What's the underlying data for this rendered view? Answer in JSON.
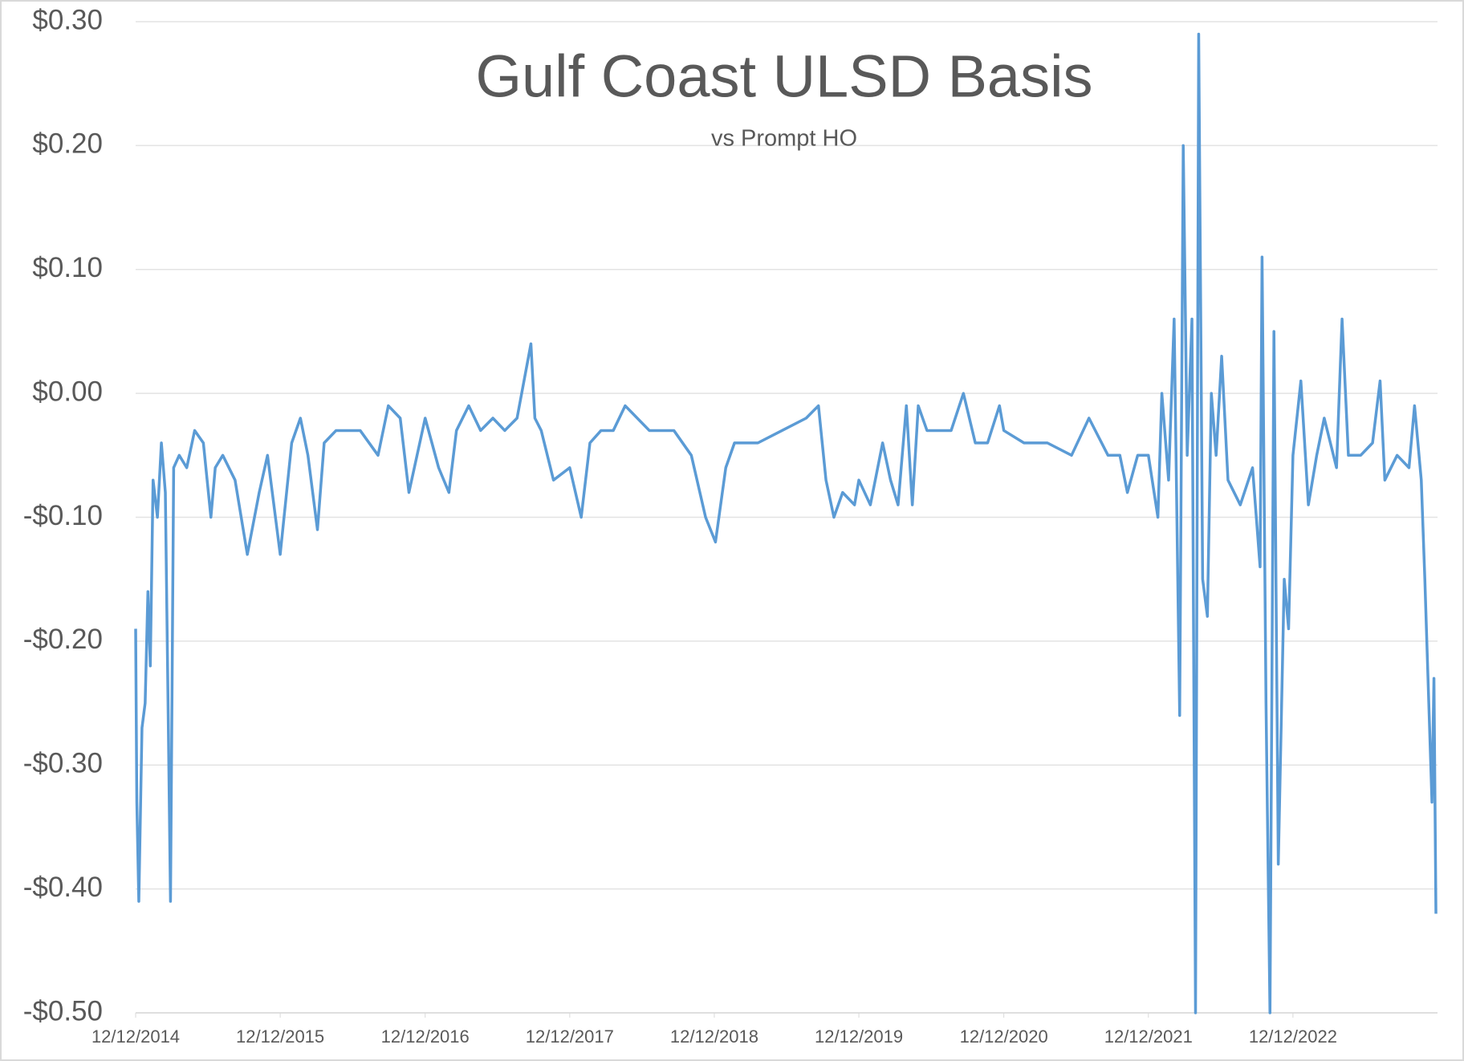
{
  "chart_data": {
    "type": "line",
    "title": "Gulf Coast ULSD Basis",
    "subtitle": "vs Prompt HO",
    "x": [
      "12/12/2014",
      "12/15/2014",
      "12/20/2014",
      "12/28/2014",
      "1/5/2015",
      "1/12/2015",
      "1/18/2015",
      "1/25/2015",
      "2/5/2015",
      "2/15/2015",
      "2/25/2015",
      "3/5/2015",
      "3/10/2015",
      "3/18/2015",
      "4/1/2015",
      "4/20/2015",
      "5/10/2015",
      "6/1/2015",
      "6/20/2015",
      "7/1/2015",
      "7/20/2015",
      "8/20/2015",
      "9/20/2015",
      "10/20/2015",
      "11/10/2015",
      "12/12/2015",
      "1/10/2016",
      "2/1/2016",
      "2/20/2016",
      "3/15/2016",
      "4/1/2016",
      "5/1/2016",
      "7/1/2016",
      "8/15/2016",
      "9/10/2016",
      "10/10/2016",
      "11/1/2016",
      "12/12/2016",
      "1/15/2017",
      "2/10/2017",
      "3/1/2017",
      "4/1/2017",
      "5/1/2017",
      "6/1/2017",
      "7/1/2017",
      "8/1/2017",
      "9/5/2017",
      "9/15/2017",
      "10/1/2017",
      "11/1/2017",
      "12/12/2017",
      "1/10/2018",
      "2/1/2018",
      "3/1/2018",
      "4/1/2018",
      "5/1/2018",
      "7/1/2018",
      "9/1/2018",
      "10/15/2018",
      "11/20/2018",
      "12/15/2018",
      "1/10/2019",
      "2/1/2019",
      "4/1/2019",
      "6/1/2019",
      "8/1/2019",
      "9/1/2019",
      "9/20/2019",
      "10/10/2019",
      "11/1/2019",
      "12/1/2019",
      "12/12/2019",
      "1/10/2020",
      "2/10/2020",
      "3/1/2020",
      "3/20/2020",
      "4/10/2020",
      "4/25/2020",
      "5/10/2020",
      "6/1/2020",
      "7/1/2020",
      "8/1/2020",
      "9/1/2020",
      "10/1/2020",
      "11/1/2020",
      "12/1/2020",
      "12/12/2020",
      "2/1/2021",
      "4/1/2021",
      "6/1/2021",
      "7/15/2021",
      "9/1/2021",
      "10/1/2021",
      "10/20/2021",
      "11/15/2021",
      "12/12/2021",
      "1/5/2022",
      "1/15/2022",
      "2/1/2022",
      "2/15/2022",
      "3/1/2022",
      "3/10/2022",
      "3/20/2022",
      "4/1/2022",
      "4/10/2022",
      "4/18/2022",
      "4/28/2022",
      "5/10/2022",
      "5/20/2022",
      "6/1/2022",
      "6/15/2022",
      "7/1/2022",
      "8/1/2022",
      "9/1/2022",
      "9/20/2022",
      "9/25/2022",
      "10/5/2022",
      "10/15/2022",
      "10/25/2022",
      "11/5/2022",
      "11/20/2022",
      "12/1/2022",
      "12/12/2022",
      "1/1/2023",
      "1/20/2023",
      "2/10/2023",
      "3/1/2023",
      "4/1/2023",
      "4/15/2023",
      "5/1/2023",
      "6/1/2023",
      "7/1/2023",
      "7/20/2023",
      "8/1/2023",
      "9/1/2023",
      "10/1/2023",
      "10/15/2023",
      "11/1/2023",
      "11/10/2023",
      "11/20/2023",
      "11/28/2023",
      "12/3/2023",
      "12/8/2023"
    ],
    "series": [
      {
        "color": "#5b9bd5",
        "values": [
          -0.19,
          -0.33,
          -0.41,
          -0.27,
          -0.25,
          -0.16,
          -0.22,
          -0.07,
          -0.1,
          -0.04,
          -0.08,
          -0.28,
          -0.41,
          -0.06,
          -0.05,
          -0.06,
          -0.03,
          -0.04,
          -0.1,
          -0.06,
          -0.05,
          -0.07,
          -0.13,
          -0.08,
          -0.05,
          -0.13,
          -0.04,
          -0.02,
          -0.05,
          -0.11,
          -0.04,
          -0.03,
          -0.03,
          -0.05,
          -0.01,
          -0.02,
          -0.08,
          -0.02,
          -0.06,
          -0.08,
          -0.03,
          -0.01,
          -0.03,
          -0.02,
          -0.03,
          -0.02,
          0.04,
          -0.02,
          -0.03,
          -0.07,
          -0.06,
          -0.1,
          -0.04,
          -0.03,
          -0.03,
          -0.01,
          -0.03,
          -0.03,
          -0.05,
          -0.1,
          -0.12,
          -0.06,
          -0.04,
          -0.04,
          -0.03,
          -0.02,
          -0.01,
          -0.07,
          -0.1,
          -0.08,
          -0.09,
          -0.07,
          -0.09,
          -0.04,
          -0.07,
          -0.09,
          -0.01,
          -0.09,
          -0.01,
          -0.03,
          -0.03,
          -0.03,
          0.0,
          -0.04,
          -0.04,
          -0.01,
          -0.03,
          -0.04,
          -0.04,
          -0.05,
          -0.02,
          -0.05,
          -0.05,
          -0.08,
          -0.05,
          -0.05,
          -0.1,
          0.0,
          -0.07,
          0.06,
          -0.26,
          0.2,
          -0.05,
          0.06,
          -0.5,
          0.29,
          -0.15,
          -0.18,
          0.0,
          -0.05,
          0.03,
          -0.07,
          -0.09,
          -0.06,
          -0.14,
          0.11,
          -0.25,
          -0.5,
          0.05,
          -0.38,
          -0.15,
          -0.19,
          -0.05,
          0.01,
          -0.09,
          -0.05,
          -0.02,
          -0.06,
          0.06,
          -0.05,
          -0.05,
          -0.04,
          0.01,
          -0.07,
          -0.05,
          -0.06,
          -0.01,
          -0.07,
          -0.15,
          -0.25,
          -0.33,
          -0.23,
          -0.42
        ]
      }
    ],
    "xlim": [
      "12/12/2014",
      "12/12/2023"
    ],
    "xticks": [
      "12/12/2014",
      "12/12/2015",
      "12/12/2016",
      "12/12/2017",
      "12/12/2018",
      "12/12/2019",
      "12/12/2020",
      "12/12/2021",
      "12/12/2022"
    ],
    "ylim": [
      -0.5,
      0.3
    ],
    "yticks": [
      {
        "value": 0.3,
        "label": "$0.30"
      },
      {
        "value": 0.2,
        "label": "$0.20"
      },
      {
        "value": 0.1,
        "label": "$0.10"
      },
      {
        "value": 0,
        "label": "$0.00"
      },
      {
        "value": -0.1,
        "label": "-$0.10"
      },
      {
        "value": -0.2,
        "label": "-$0.20"
      },
      {
        "value": -0.3,
        "label": "-$0.30"
      },
      {
        "value": -0.4,
        "label": "-$0.40"
      },
      {
        "value": -0.5,
        "label": "-$0.50"
      }
    ],
    "grid": true
  }
}
